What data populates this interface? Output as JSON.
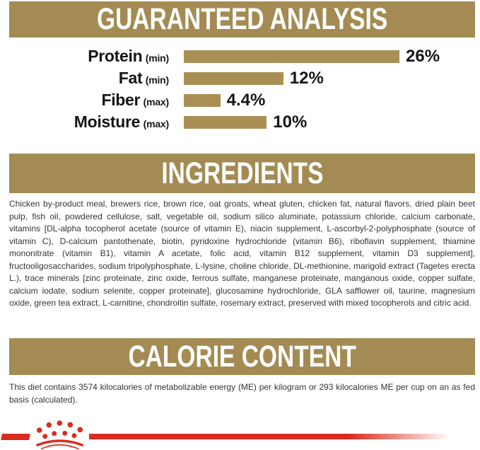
{
  "sections": {
    "guaranteed_analysis": {
      "title": "GUARANTEED ANALYSIS"
    },
    "ingredients": {
      "title": "INGREDIENTS",
      "text": "Chicken by-product meal, brewers rice, brown rice, oat groats, wheat gluten, chicken fat, natural flavors, dried plain beet pulp, fish oil, powdered cellulose, salt, vegetable oil, sodium silico aluminate, potassium chloride, calcium carbonate, vitamins [DL-alpha tocopherol acetate (source of vitamin E), niacin supplement, L-ascorbyl-2-polyphosphate (source of vitamin C), D-calcium pantothenate, biotin, pyridoxine hydrochloride (vitamin B6), riboflavin supplement, thiamine mononitrate (vitamin B1), vitamin A acetate, folic acid, vitamin B12 supplement, vitamin D3 supplement], fructooligosaccharides, sodium tripolyphosphate, L-lysine, choline chloride, DL-methionine, marigold extract (Tagetes erecta L.), trace minerals [zinc proteinate, zinc oxide, ferrous sulfate, manganese proteinate, manganous oxide, copper sulfate, calcium iodate, sodium selenite, copper proteinate], glucosamine hydrochloride, GLA safflower oil, taurine, magnesium oxide, green tea extract, L-carnitine, chondroitin sulfate, rosemary extract, preserved with mixed tocopherols and citric acid."
    },
    "calorie_content": {
      "title": "CALORIE CONTENT",
      "text": "This diet contains 3574 kilocalories of metabolizable energy (ME) per kilogram or 293 kilocalories ME per cup on an as fed basis (calculated)."
    }
  },
  "chart_data": {
    "type": "bar",
    "orientation": "horizontal",
    "title": "GUARANTEED ANALYSIS",
    "categories": [
      "Protein",
      "Fat",
      "Fiber",
      "Moisture"
    ],
    "bars": [
      {
        "label": "Protein",
        "qualifier": "(min)",
        "value": 26,
        "display": "26%"
      },
      {
        "label": "Fat",
        "qualifier": "(min)",
        "value": 12,
        "display": "12%"
      },
      {
        "label": "Fiber",
        "qualifier": "(max)",
        "value": 4.4,
        "display": "4.4%"
      },
      {
        "label": "Moisture",
        "qualifier": "(max)",
        "value": 10,
        "display": "10%"
      }
    ],
    "xlim": [
      0,
      26
    ],
    "grid": false,
    "legend": "none",
    "value_label_position": "end",
    "bar_color": "#aa8f55"
  },
  "footer": {
    "brand_icon": "royal-canin-crown"
  },
  "colors": {
    "band_gold": "#a38b53",
    "bar_gold": "#aa8f55",
    "brand_red": "#d92c20",
    "body_text": "#343434",
    "label_text": "#161616",
    "header_text": "#ffffff",
    "background": "#ffffff"
  }
}
